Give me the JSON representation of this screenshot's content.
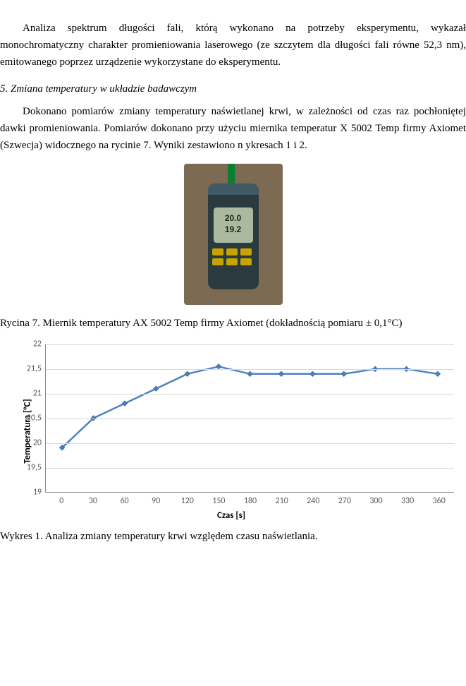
{
  "paragraph1": "Analiza spektrum długości fali, którą wykonano na potrzeby eksperymentu, wykazał monochromatyczny charakter promieniowania laserowego (ze szczytem dla długości fali równe 52,3 nm), emitowanego poprzez urządzenie wykorzystane do eksperymentu.",
  "section_heading": "5.  Zmiana temperatury w układzie badawczym",
  "paragraph2": "Dokonano pomiarów zmiany temperatury naświetlanej krwi, w zależności od czas raz pochłoniętej dawki promieniowania. Pomiarów dokonano przy użyciu miernika temperatur X 5002 Temp firmy Axiomet (Szwecja) widocznego na rycinie 7. Wyniki zestawiono n ykresach 1 i 2.",
  "device_reading_top": "20.0",
  "device_reading_bottom": "19.2",
  "fig7_caption": "Rycina 7. Miernik temperatury AX 5002 Temp firmy Axiomet (dokładnością pomiaru ± 0,1°C)",
  "chart": {
    "type": "line",
    "x_values": [
      0,
      30,
      60,
      90,
      120,
      150,
      180,
      210,
      240,
      270,
      300,
      330,
      360
    ],
    "y_values": [
      19.9,
      20.5,
      20.8,
      21.1,
      21.4,
      21.55,
      21.4,
      21.4,
      21.4,
      21.4,
      21.5,
      21.5,
      21.4
    ],
    "y_ticks": [
      19,
      19.5,
      20,
      20.5,
      21,
      21.5,
      22
    ],
    "y_tick_labels": [
      "19",
      "19,5",
      "20",
      "20,5",
      "21",
      "21,5",
      "22"
    ],
    "x_ticks": [
      0,
      30,
      60,
      90,
      120,
      150,
      180,
      210,
      240,
      270,
      300,
      330,
      360
    ],
    "ylim": [
      19,
      22
    ],
    "xlim": [
      -15,
      375
    ],
    "line_color": "#4f81bd",
    "marker_color": "#4f81bd",
    "marker_size": 7,
    "line_width": 2.5,
    "grid_color": "#d9d9d9",
    "background_color": "#ffffff",
    "ylabel": "Temperatura [°C]",
    "xlabel": "Czas  [s]",
    "label_fontsize": 13,
    "tick_fontsize": 12,
    "tick_color": "#5a5a5a"
  },
  "chart_caption": "Wykres 1. Analiza zmiany temperatury krwi względem czasu naświetlania."
}
